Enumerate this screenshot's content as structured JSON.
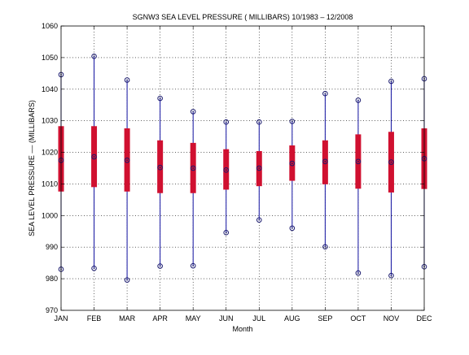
{
  "chart_data": {
    "type": "box",
    "title": "SGNW3  SEA LEVEL PRESSURE ( MILLIBARS) 10/1983 – 12/2008",
    "xlabel": "Month",
    "ylabel": "SEA LEVEL PRESSURE –– (MILLIBARS)",
    "ylim": [
      970,
      1060
    ],
    "yticks": [
      970,
      980,
      990,
      1000,
      1010,
      1020,
      1030,
      1040,
      1050,
      1060
    ],
    "grid": true,
    "categories": [
      "JAN",
      "FEB",
      "MAR",
      "APR",
      "MAY",
      "JUN",
      "JUL",
      "AUG",
      "SEP",
      "OCT",
      "NOV",
      "DEC"
    ],
    "max": [
      1044.6,
      1050.4,
      1042.9,
      1037.1,
      1032.9,
      1029.6,
      1029.6,
      1029.8,
      1038.6,
      1036.5,
      1042.5,
      1043.3
    ],
    "q3": [
      1028.3,
      1028.3,
      1027.6,
      1023.8,
      1023.0,
      1021.0,
      1020.4,
      1022.2,
      1023.8,
      1025.7,
      1026.5,
      1027.6
    ],
    "median": [
      1017.5,
      1018.6,
      1017.5,
      1015.2,
      1015.0,
      1014.4,
      1015.0,
      1016.5,
      1017.1,
      1017.1,
      1016.9,
      1018.0
    ],
    "q1": [
      1007.6,
      1009.0,
      1007.6,
      1007.1,
      1007.1,
      1008.2,
      1009.3,
      1011.0,
      1009.9,
      1008.5,
      1007.3,
      1008.4
    ],
    "min": [
      983.0,
      983.3,
      979.6,
      984.0,
      984.1,
      994.6,
      998.6,
      996.0,
      990.1,
      981.8,
      981.0,
      983.8
    ],
    "colors": {
      "whisker": "#1010a0",
      "marker": "#1a1a6e",
      "box": "#d01030",
      "grid": "#000000",
      "axis": "#000000"
    }
  }
}
